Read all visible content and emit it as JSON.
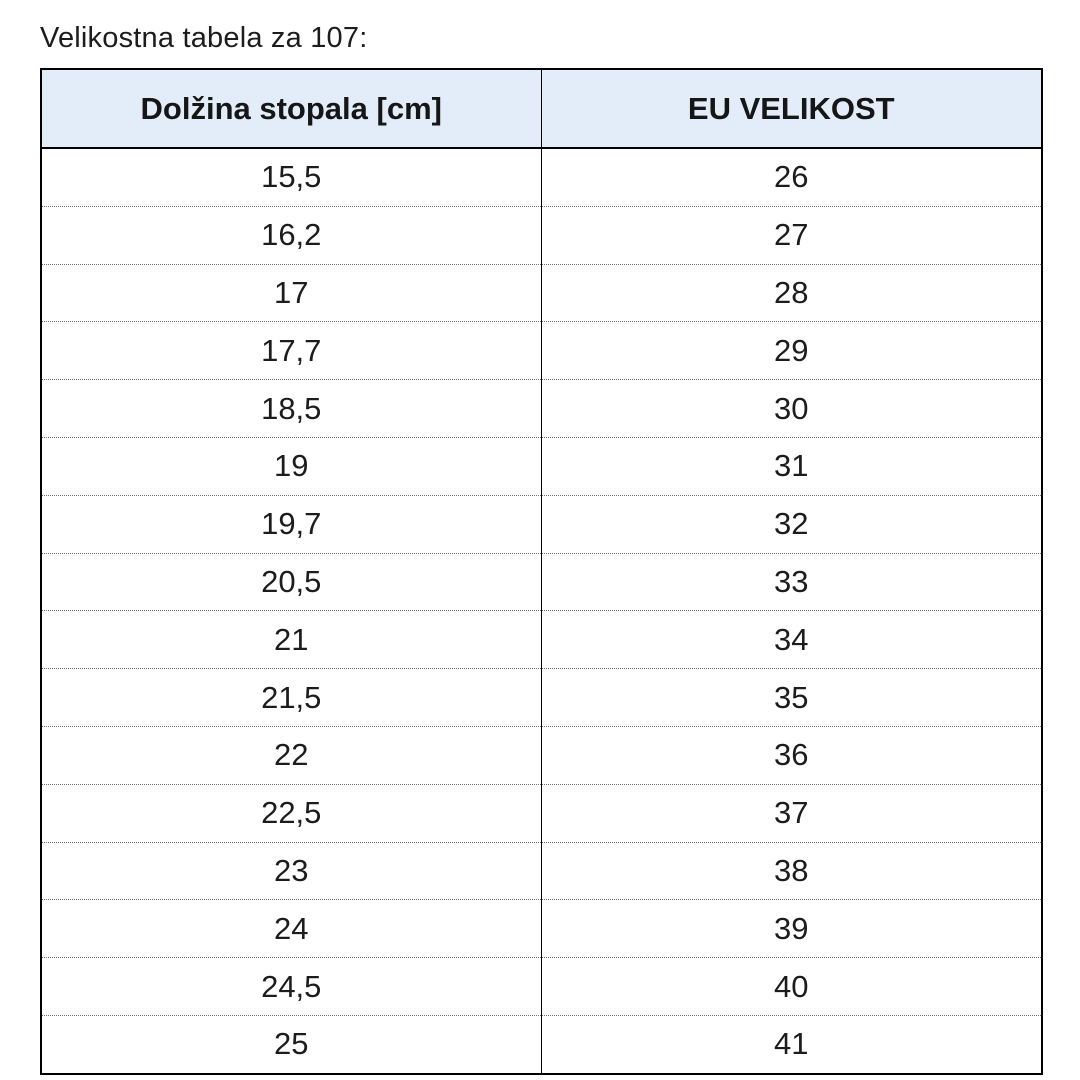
{
  "page": {
    "background_color": "#ffffff",
    "text_color": "#1c1c1c"
  },
  "title": "Velikostna tabela za 107:",
  "table": {
    "headers": [
      "Dolžina stopala [cm]",
      "EU VELIKOST"
    ],
    "header_background": "#e3edf9",
    "border_color": "#000000",
    "row_divider_color": "#6e6e6e",
    "rows": [
      {
        "foot_length_cm": "15,5",
        "eu_size": "26"
      },
      {
        "foot_length_cm": "16,2",
        "eu_size": "27"
      },
      {
        "foot_length_cm": "17",
        "eu_size": "28"
      },
      {
        "foot_length_cm": "17,7",
        "eu_size": "29"
      },
      {
        "foot_length_cm": "18,5",
        "eu_size": "30"
      },
      {
        "foot_length_cm": "19",
        "eu_size": "31"
      },
      {
        "foot_length_cm": "19,7",
        "eu_size": "32"
      },
      {
        "foot_length_cm": "20,5",
        "eu_size": "33"
      },
      {
        "foot_length_cm": "21",
        "eu_size": "34"
      },
      {
        "foot_length_cm": "21,5",
        "eu_size": "35"
      },
      {
        "foot_length_cm": "22",
        "eu_size": "36"
      },
      {
        "foot_length_cm": "22,5",
        "eu_size": "37"
      },
      {
        "foot_length_cm": "23",
        "eu_size": "38"
      },
      {
        "foot_length_cm": "24",
        "eu_size": "39"
      },
      {
        "foot_length_cm": "24,5",
        "eu_size": "40"
      },
      {
        "foot_length_cm": "25",
        "eu_size": "41"
      }
    ]
  },
  "chart_data": {
    "type": "table",
    "title": "Velikostna tabela za 107:",
    "columns": [
      "Dolžina stopala [cm]",
      "EU VELIKOST"
    ],
    "rows": [
      [
        "15,5",
        "26"
      ],
      [
        "16,2",
        "27"
      ],
      [
        "17",
        "28"
      ],
      [
        "17,7",
        "29"
      ],
      [
        "18,5",
        "30"
      ],
      [
        "19",
        "31"
      ],
      [
        "19,7",
        "32"
      ],
      [
        "20,5",
        "33"
      ],
      [
        "21",
        "34"
      ],
      [
        "21,5",
        "35"
      ],
      [
        "22",
        "36"
      ],
      [
        "22,5",
        "37"
      ],
      [
        "23",
        "38"
      ],
      [
        "24",
        "39"
      ],
      [
        "24,5",
        "40"
      ],
      [
        "25",
        "41"
      ]
    ]
  }
}
